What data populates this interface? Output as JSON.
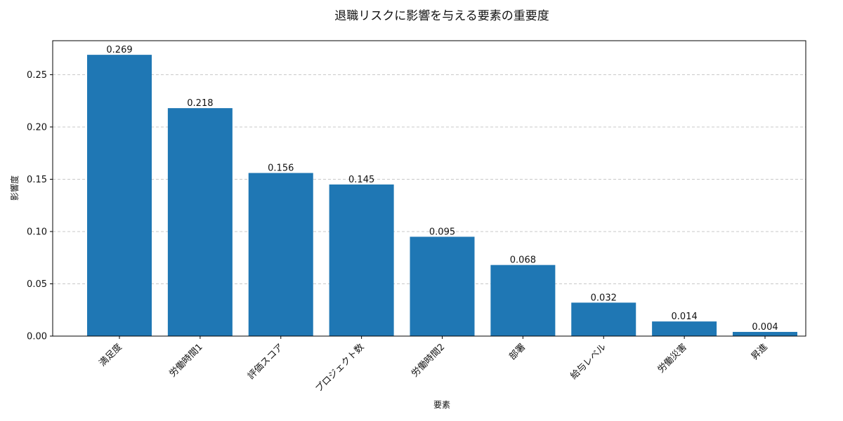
{
  "chart_data": {
    "type": "bar",
    "title": "退職リスクに影響を与える要素の重要度",
    "xlabel": "要素",
    "ylabel": "影響度",
    "categories": [
      "満足度",
      "労働時間1",
      "評価スコア",
      "プロジェクト数",
      "労働時間2",
      "部署",
      "給与レベル",
      "労働災害",
      "昇進"
    ],
    "values": [
      0.269,
      0.218,
      0.156,
      0.145,
      0.095,
      0.068,
      0.032,
      0.014,
      0.004
    ],
    "value_labels": [
      "0.269",
      "0.218",
      "0.156",
      "0.145",
      "0.095",
      "0.068",
      "0.032",
      "0.014",
      "0.004"
    ],
    "yticks": [
      0.0,
      0.05,
      0.1,
      0.15,
      0.2,
      0.25
    ],
    "ytick_labels": [
      "0.00",
      "0.05",
      "0.10",
      "0.15",
      "0.20",
      "0.25"
    ],
    "ylim": [
      0,
      0.2825
    ],
    "grid": "horizontal-dashed",
    "bar_color": "#1f77b4"
  }
}
